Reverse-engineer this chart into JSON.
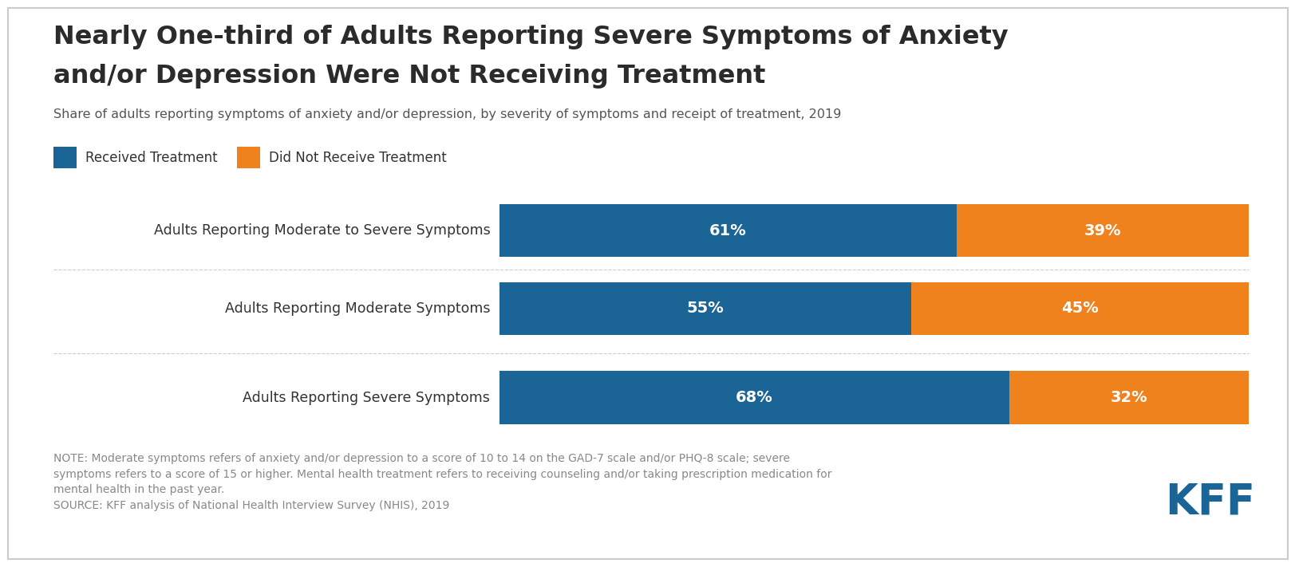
{
  "title_line1": "Nearly One-third of Adults Reporting Severe Symptoms of Anxiety",
  "title_line2": "and/or Depression Were Not Receiving Treatment",
  "subtitle": "Share of adults reporting symptoms of anxiety and/or depression, by severity of symptoms and receipt of treatment, 2019",
  "categories": [
    "Adults Reporting Moderate to Severe Symptoms",
    "Adults Reporting Moderate Symptoms",
    "Adults Reporting Severe Symptoms"
  ],
  "received": [
    61,
    55,
    68
  ],
  "not_received": [
    39,
    45,
    32
  ],
  "color_received": "#1a6496",
  "color_not_received": "#f0821e",
  "legend_labels": [
    "Received Treatment",
    "Did Not Receive Treatment"
  ],
  "note_text": "NOTE: Moderate symptoms refers of anxiety and/or depression to a score of 10 to 14 on the GAD-7 scale and/or PHQ-8 scale; severe\nsymptoms refers to a score of 15 or higher. Mental health treatment refers to receiving counseling and/or taking prescription medication for\nmental health in the past year.\nSOURCE: KFF analysis of National Health Interview Survey (NHIS), 2019",
  "background_color": "#ffffff",
  "border_color": "#cccccc",
  "title_color": "#2b2b2b",
  "subtitle_color": "#555555",
  "label_color": "#333333",
  "bar_label_color": "#ffffff",
  "note_color": "#888888",
  "kff_color": "#1a6496",
  "separator_color": "#cccccc"
}
